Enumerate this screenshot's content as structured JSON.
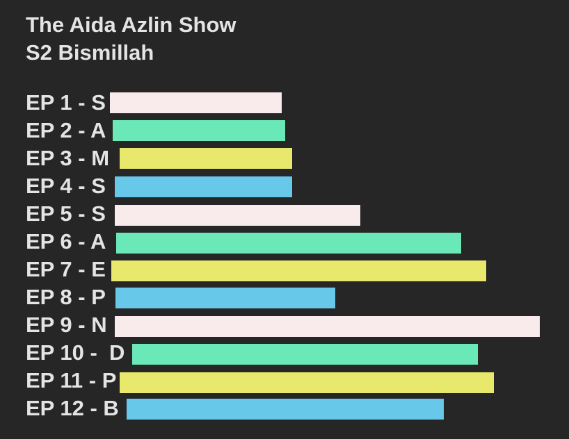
{
  "header": {
    "title": "The Aida Azlin Show",
    "subtitle": "S2 Bismillah"
  },
  "episodes": [
    {
      "label": "EP 1 - S"
    },
    {
      "label": "EP 2 - A"
    },
    {
      "label": "EP 3 - M"
    },
    {
      "label": "EP 4 - S"
    },
    {
      "label": "EP 5 - S"
    },
    {
      "label": "EP 6 - A"
    },
    {
      "label": "EP 7 - E"
    },
    {
      "label": "EP 8 - P"
    },
    {
      "label": "EP 9 - N"
    },
    {
      "label": "EP 10 -  D"
    },
    {
      "label": "EP 11 - P"
    },
    {
      "label": "EP 12 - B"
    }
  ]
}
